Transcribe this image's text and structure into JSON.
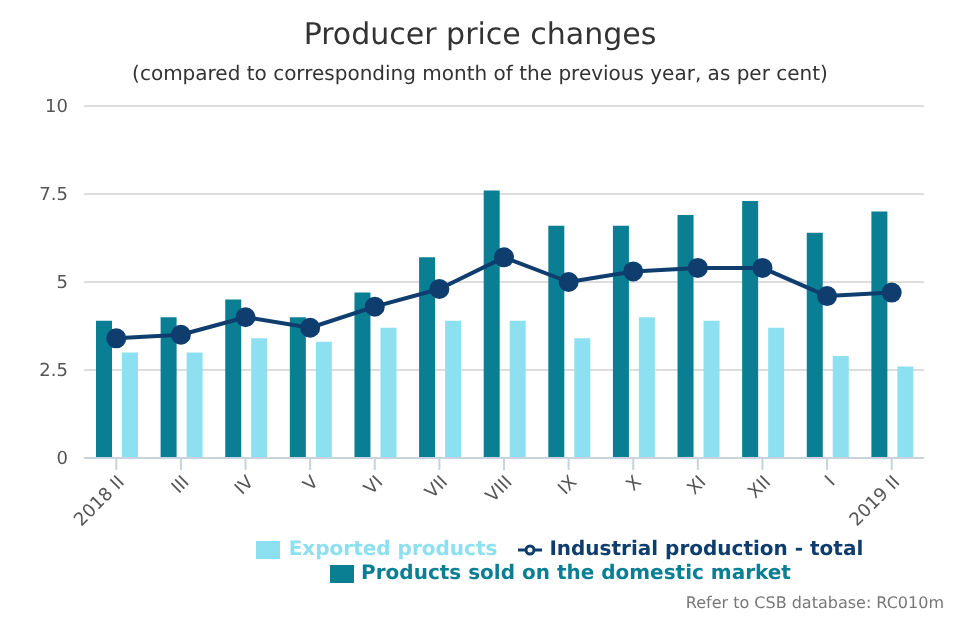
{
  "chart_data": {
    "type": "bar",
    "title": "Producer price changes",
    "subtitle": "(compared to corresponding month of the previous year, as per cent)",
    "categories": [
      "2018 II",
      "III",
      "IV",
      "V",
      "VI",
      "VII",
      "VIII",
      "IX",
      "X",
      "XI",
      "XII",
      "I",
      "2019 II"
    ],
    "series": [
      {
        "name": "Products sold on the domestic market",
        "color": "#0a7f94",
        "values": [
          3.9,
          4.0,
          4.5,
          4.0,
          4.7,
          5.7,
          7.6,
          6.6,
          6.6,
          6.9,
          7.3,
          6.4,
          7.0
        ]
      },
      {
        "name": "Exported products",
        "color": "#8de0f0",
        "values": [
          3.0,
          3.0,
          3.4,
          3.3,
          3.7,
          3.9,
          3.9,
          3.4,
          4.0,
          3.9,
          3.7,
          2.9,
          2.6
        ]
      },
      {
        "name": "Industrial production - total",
        "type": "line",
        "color": "#0f3e6e",
        "values": [
          3.4,
          3.5,
          4.0,
          3.7,
          4.3,
          4.8,
          5.7,
          5.0,
          5.3,
          5.4,
          5.4,
          4.6,
          4.7
        ]
      }
    ],
    "ylim": [
      0,
      10
    ],
    "yticks": [
      0,
      2.5,
      5,
      7.5,
      10
    ],
    "grid": "y",
    "legend": "bottom",
    "marker": "circle",
    "annotations": [
      "Refer to CSB database: RC010m"
    ]
  }
}
